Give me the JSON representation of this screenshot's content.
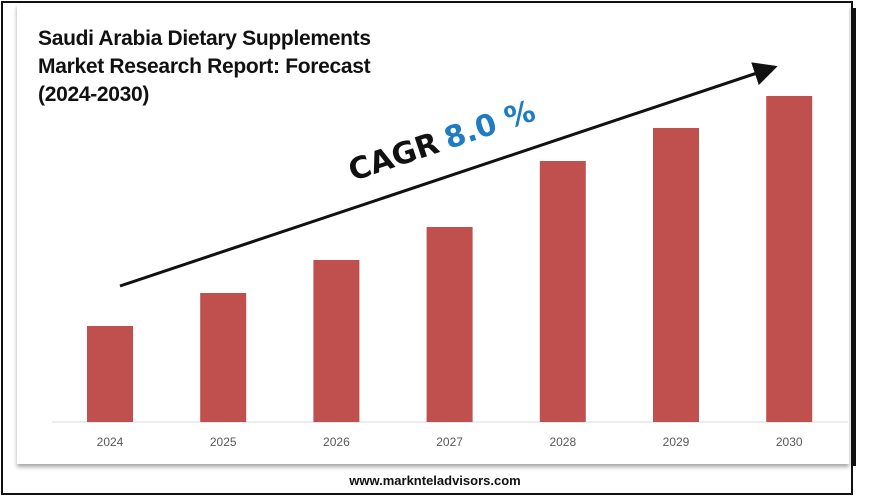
{
  "chart_data": {
    "type": "bar",
    "title": "Saudi Arabia Dietary Supplements Market Research Report: Forecast (2024-2030)",
    "categories": [
      "2024",
      "2025",
      "2026",
      "2027",
      "2028",
      "2029",
      "2030"
    ],
    "values": [
      96,
      129,
      162,
      195,
      261,
      294,
      326
    ],
    "value_note_units": "relative bar height (no y-axis printed)",
    "xlabel": "",
    "ylabel": "",
    "grid": false,
    "legend": "none",
    "bar_color": "#C0504D",
    "annotation": {
      "label": "CAGR",
      "value": "8.0 %",
      "value_color": "#1F7BC4"
    }
  },
  "footer": "www.marknteladvisors.com"
}
